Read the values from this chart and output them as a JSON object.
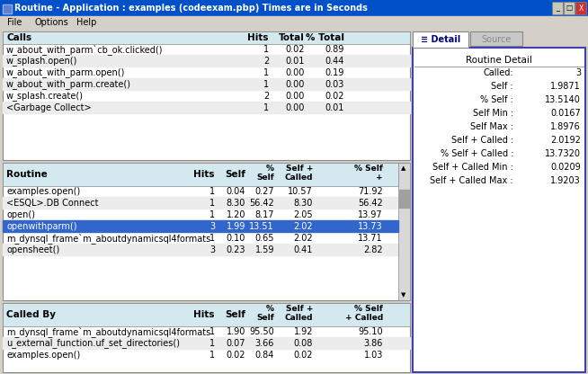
{
  "title": "Routine - Application : examples (codeexam.pbp) Times are in Seconds",
  "menu_items": [
    "File",
    "Options",
    "Help"
  ],
  "title_bar_color": "#0050c8",
  "title_text_color": "#ffffff",
  "menu_bar_color": "#d4d0c8",
  "bg_color": "#d4d0c8",
  "calls_header": [
    "Calls",
    "Hits",
    "Total",
    "% Total"
  ],
  "calls_data": [
    [
      "w_about_with_parm`cb_ok.clicked()",
      "1",
      "0.02",
      "0.89"
    ],
    [
      "w_splash.open()",
      "2",
      "0.01",
      "0.44"
    ],
    [
      "w_about_with_parm.open()",
      "1",
      "0.00",
      "0.19"
    ],
    [
      "w_about_with_parm.create()",
      "1",
      "0.00",
      "0.03"
    ],
    [
      "w_splash.create()",
      "2",
      "0.00",
      "0.02"
    ],
    [
      "<Garbage Collect>",
      "1",
      "0.00",
      "0.01"
    ]
  ],
  "routines_data": [
    [
      "examples.open()",
      "1",
      "0.04",
      "0.27",
      "10.57",
      "71.92"
    ],
    [
      "<ESQL>.DB Connect",
      "1",
      "8.30",
      "56.42",
      "8.30",
      "56.42"
    ],
    [
      "open()",
      "1",
      "1.20",
      "8.17",
      "2.05",
      "13.97"
    ],
    [
      "openwithparm()",
      "3",
      "1.99",
      "13.51",
      "2.02",
      "13.73"
    ],
    [
      "m_dynsql_frame`m_aboutdynamicsql4formats",
      "1",
      "0.10",
      "0.65",
      "2.02",
      "13.71"
    ],
    [
      "opensheet()",
      "3",
      "0.23",
      "1.59",
      "0.41",
      "2.82"
    ]
  ],
  "highlight_row": 3,
  "highlight_color": "#3366cc",
  "highlight_text_color": "#ffffff",
  "called_by_data": [
    [
      "m_dynsql_frame`m_aboutdynamicsql4formats",
      "1",
      "1.90",
      "95.50",
      "1.92",
      "95.10"
    ],
    [
      "u_external_function.uf_set_directories()",
      "1",
      "0.07",
      "3.66",
      "0.08",
      "3.86"
    ],
    [
      "examples.open()",
      "1",
      "0.02",
      "0.84",
      "0.02",
      "1.03"
    ]
  ],
  "detail_title": "Routine Detail",
  "detail_labels": [
    "Called:",
    "Self :",
    "% Self :",
    "Self Min :",
    "Self Max :",
    "Self + Called :",
    "% Self + Called :",
    "Self + Called Min :",
    "Self + Called Max :"
  ],
  "detail_values": [
    "3",
    "1.9871",
    "13.5140",
    "0.0167",
    "1.8976",
    "2.0192",
    "13.7320",
    "0.0209",
    "1.9203"
  ],
  "tab_detail": "Detail",
  "tab_source": "Source",
  "window_bg": "#c0c0c0",
  "header_bg": "#d4e8f0",
  "white": "#ffffff",
  "scrollbar_bg": "#d0d0d0",
  "title_icon_color": "#c0c0ff"
}
